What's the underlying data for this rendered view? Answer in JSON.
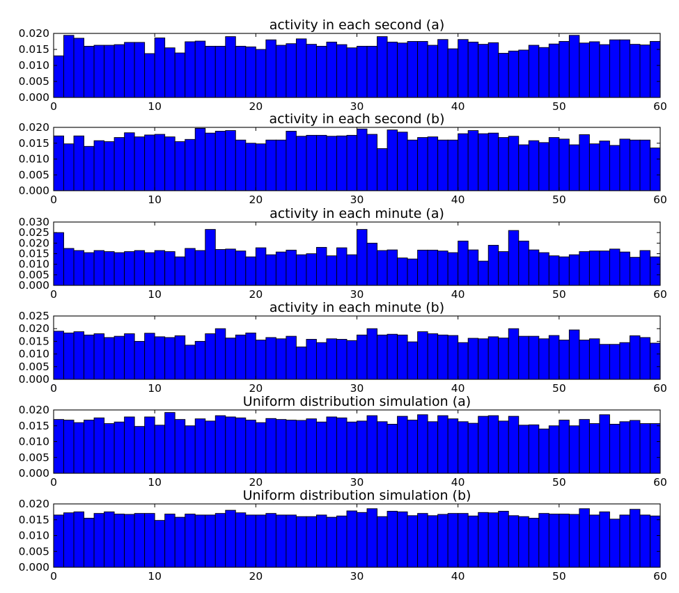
{
  "chart_data": [
    {
      "type": "bar",
      "title": "activity in each second (a)",
      "xlim": [
        0,
        60
      ],
      "ylim": [
        0,
        0.02
      ],
      "xticks": [
        "0",
        "10",
        "20",
        "30",
        "40",
        "50",
        "60"
      ],
      "yticks": [
        "0.000",
        "0.005",
        "0.010",
        "0.015",
        "0.020"
      ],
      "x": [
        0,
        1,
        2,
        3,
        4,
        5,
        6,
        7,
        8,
        9,
        10,
        11,
        12,
        13,
        14,
        15,
        16,
        17,
        18,
        19,
        20,
        21,
        22,
        23,
        24,
        25,
        26,
        27,
        28,
        29,
        30,
        31,
        32,
        33,
        34,
        35,
        36,
        37,
        38,
        39,
        40,
        41,
        42,
        43,
        44,
        45,
        46,
        47,
        48,
        49,
        50,
        51,
        52,
        53,
        54,
        55,
        56,
        57,
        58,
        59
      ],
      "values": [
        0.013,
        0.0194,
        0.0185,
        0.016,
        0.0163,
        0.0163,
        0.0165,
        0.0172,
        0.0172,
        0.0137,
        0.0186,
        0.0155,
        0.0139,
        0.0174,
        0.0176,
        0.016,
        0.016,
        0.019,
        0.016,
        0.0158,
        0.015,
        0.018,
        0.0163,
        0.0168,
        0.0183,
        0.0166,
        0.016,
        0.0173,
        0.0165,
        0.0155,
        0.016,
        0.016,
        0.019,
        0.0173,
        0.017,
        0.0175,
        0.0175,
        0.0163,
        0.0181,
        0.0152,
        0.0181,
        0.0173,
        0.0166,
        0.0171,
        0.0138,
        0.0145,
        0.0148,
        0.0163,
        0.0156,
        0.0167,
        0.0175,
        0.0194,
        0.017,
        0.0174,
        0.0165,
        0.018,
        0.018,
        0.0166,
        0.0164,
        0.0175
      ]
    },
    {
      "type": "bar",
      "title": "activity in each second (b)",
      "xlim": [
        0,
        60
      ],
      "ylim": [
        0,
        0.02
      ],
      "xticks": [
        "0",
        "10",
        "20",
        "30",
        "40",
        "50",
        "60"
      ],
      "yticks": [
        "0.000",
        "0.005",
        "0.010",
        "0.015",
        "0.020"
      ],
      "x": [
        0,
        1,
        2,
        3,
        4,
        5,
        6,
        7,
        8,
        9,
        10,
        11,
        12,
        13,
        14,
        15,
        16,
        17,
        18,
        19,
        20,
        21,
        22,
        23,
        24,
        25,
        26,
        27,
        28,
        29,
        30,
        31,
        32,
        33,
        34,
        35,
        36,
        37,
        38,
        39,
        40,
        41,
        42,
        43,
        44,
        45,
        46,
        47,
        48,
        49,
        50,
        51,
        52,
        53,
        54,
        55,
        56,
        57,
        58,
        59
      ],
      "values": [
        0.0173,
        0.0148,
        0.0173,
        0.014,
        0.0158,
        0.0155,
        0.0168,
        0.0183,
        0.017,
        0.0176,
        0.0178,
        0.017,
        0.0155,
        0.0162,
        0.0197,
        0.0182,
        0.0188,
        0.019,
        0.016,
        0.015,
        0.0148,
        0.016,
        0.016,
        0.0188,
        0.0172,
        0.0175,
        0.0175,
        0.0172,
        0.0173,
        0.0175,
        0.0195,
        0.0178,
        0.0133,
        0.0192,
        0.0185,
        0.016,
        0.0168,
        0.017,
        0.016,
        0.016,
        0.018,
        0.019,
        0.018,
        0.0182,
        0.0168,
        0.0172,
        0.0145,
        0.0158,
        0.0152,
        0.0168,
        0.0163,
        0.0145,
        0.0177,
        0.0148,
        0.0157,
        0.0143,
        0.0163,
        0.016,
        0.016,
        0.0135
      ]
    },
    {
      "type": "bar",
      "title": "activity in each minute (a)",
      "xlim": [
        0,
        60
      ],
      "ylim": [
        0,
        0.03
      ],
      "xticks": [
        "0",
        "10",
        "20",
        "30",
        "40",
        "50",
        "60"
      ],
      "yticks": [
        "0.000",
        "0.005",
        "0.010",
        "0.015",
        "0.020",
        "0.025",
        "0.030"
      ],
      "x": [
        0,
        1,
        2,
        3,
        4,
        5,
        6,
        7,
        8,
        9,
        10,
        11,
        12,
        13,
        14,
        15,
        16,
        17,
        18,
        19,
        20,
        21,
        22,
        23,
        24,
        25,
        26,
        27,
        28,
        29,
        30,
        31,
        32,
        33,
        34,
        35,
        36,
        37,
        38,
        39,
        40,
        41,
        42,
        43,
        44,
        45,
        46,
        47,
        48,
        49,
        50,
        51,
        52,
        53,
        54,
        55,
        56,
        57,
        58,
        59
      ],
      "values": [
        0.025,
        0.0175,
        0.0165,
        0.0155,
        0.0165,
        0.016,
        0.0155,
        0.016,
        0.0165,
        0.0155,
        0.0165,
        0.016,
        0.0135,
        0.0175,
        0.0165,
        0.0265,
        0.017,
        0.0172,
        0.0163,
        0.0135,
        0.0178,
        0.0145,
        0.0158,
        0.0167,
        0.0145,
        0.015,
        0.018,
        0.014,
        0.0178,
        0.0145,
        0.0265,
        0.02,
        0.0165,
        0.0168,
        0.013,
        0.0125,
        0.0167,
        0.0167,
        0.0163,
        0.0155,
        0.021,
        0.0168,
        0.0115,
        0.019,
        0.016,
        0.026,
        0.021,
        0.0168,
        0.0155,
        0.014,
        0.0135,
        0.0145,
        0.016,
        0.0163,
        0.0163,
        0.0172,
        0.0158,
        0.0133,
        0.0165,
        0.0135
      ]
    },
    {
      "type": "bar",
      "title": "activity in each minute (b)",
      "xlim": [
        0,
        60
      ],
      "ylim": [
        0,
        0.025
      ],
      "xticks": [
        "0",
        "10",
        "20",
        "30",
        "40",
        "50",
        "60"
      ],
      "yticks": [
        "0.000",
        "0.005",
        "0.010",
        "0.015",
        "0.020",
        "0.025"
      ],
      "x": [
        0,
        1,
        2,
        3,
        4,
        5,
        6,
        7,
        8,
        9,
        10,
        11,
        12,
        13,
        14,
        15,
        16,
        17,
        18,
        19,
        20,
        21,
        22,
        23,
        24,
        25,
        26,
        27,
        28,
        29,
        30,
        31,
        32,
        33,
        34,
        35,
        36,
        37,
        38,
        39,
        40,
        41,
        42,
        43,
        44,
        45,
        46,
        47,
        48,
        49,
        50,
        51,
        52,
        53,
        54,
        55,
        56,
        57,
        58,
        59
      ],
      "values": [
        0.019,
        0.0183,
        0.0188,
        0.0175,
        0.018,
        0.0165,
        0.017,
        0.018,
        0.015,
        0.0182,
        0.0168,
        0.0165,
        0.0172,
        0.0135,
        0.015,
        0.018,
        0.02,
        0.0163,
        0.0175,
        0.0183,
        0.0155,
        0.0165,
        0.016,
        0.017,
        0.0128,
        0.0158,
        0.0145,
        0.016,
        0.0158,
        0.0153,
        0.0175,
        0.02,
        0.0175,
        0.0178,
        0.0175,
        0.0148,
        0.0188,
        0.018,
        0.0175,
        0.0173,
        0.0145,
        0.0162,
        0.016,
        0.0168,
        0.0163,
        0.02,
        0.017,
        0.017,
        0.016,
        0.0173,
        0.0155,
        0.0195,
        0.0155,
        0.016,
        0.0138,
        0.0138,
        0.0145,
        0.0172,
        0.0165,
        0.0143
      ]
    },
    {
      "type": "bar",
      "title": "Uniform distribution simulation (a)",
      "xlim": [
        0,
        60
      ],
      "ylim": [
        0,
        0.02
      ],
      "xticks": [
        "0",
        "10",
        "20",
        "30",
        "40",
        "50",
        "60"
      ],
      "yticks": [
        "0.000",
        "0.005",
        "0.010",
        "0.015",
        "0.020"
      ],
      "x": [
        0,
        1,
        2,
        3,
        4,
        5,
        6,
        7,
        8,
        9,
        10,
        11,
        12,
        13,
        14,
        15,
        16,
        17,
        18,
        19,
        20,
        21,
        22,
        23,
        24,
        25,
        26,
        27,
        28,
        29,
        30,
        31,
        32,
        33,
        34,
        35,
        36,
        37,
        38,
        39,
        40,
        41,
        42,
        43,
        44,
        45,
        46,
        47,
        48,
        49,
        50,
        51,
        52,
        53,
        54,
        55,
        56,
        57,
        58,
        59
      ],
      "values": [
        0.017,
        0.0168,
        0.016,
        0.0168,
        0.0175,
        0.0157,
        0.0162,
        0.0178,
        0.0148,
        0.0178,
        0.0152,
        0.0192,
        0.017,
        0.015,
        0.0172,
        0.0165,
        0.0182,
        0.0178,
        0.0175,
        0.0168,
        0.016,
        0.0173,
        0.017,
        0.0168,
        0.0167,
        0.0172,
        0.0162,
        0.0178,
        0.0175,
        0.0162,
        0.0165,
        0.0182,
        0.0163,
        0.0155,
        0.018,
        0.0168,
        0.0185,
        0.0163,
        0.0182,
        0.0172,
        0.0163,
        0.0158,
        0.018,
        0.0182,
        0.0165,
        0.018,
        0.0152,
        0.0153,
        0.014,
        0.015,
        0.0168,
        0.015,
        0.017,
        0.0157,
        0.0185,
        0.0155,
        0.0163,
        0.0167,
        0.0157,
        0.0157
      ]
    },
    {
      "type": "bar",
      "title": "Uniform distribution simulation (b)",
      "xlim": [
        0,
        60
      ],
      "ylim": [
        0,
        0.02
      ],
      "xticks": [
        "0",
        "10",
        "20",
        "30",
        "40",
        "50",
        "60"
      ],
      "yticks": [
        "0.000",
        "0.005",
        "0.010",
        "0.015",
        "0.020"
      ],
      "x": [
        0,
        1,
        2,
        3,
        4,
        5,
        6,
        7,
        8,
        9,
        10,
        11,
        12,
        13,
        14,
        15,
        16,
        17,
        18,
        19,
        20,
        21,
        22,
        23,
        24,
        25,
        26,
        27,
        28,
        29,
        30,
        31,
        32,
        33,
        34,
        35,
        36,
        37,
        38,
        39,
        40,
        41,
        42,
        43,
        44,
        45,
        46,
        47,
        48,
        49,
        50,
        51,
        52,
        53,
        54,
        55,
        56,
        57,
        58,
        59
      ],
      "values": [
        0.0165,
        0.0172,
        0.0175,
        0.0155,
        0.017,
        0.0175,
        0.0168,
        0.0167,
        0.017,
        0.017,
        0.0148,
        0.0168,
        0.0158,
        0.0168,
        0.0165,
        0.0165,
        0.017,
        0.018,
        0.0172,
        0.0165,
        0.0165,
        0.017,
        0.0165,
        0.0165,
        0.016,
        0.016,
        0.0165,
        0.0158,
        0.0162,
        0.0178,
        0.0173,
        0.0185,
        0.016,
        0.0177,
        0.0175,
        0.0163,
        0.017,
        0.0163,
        0.0167,
        0.017,
        0.017,
        0.0162,
        0.0173,
        0.0172,
        0.0177,
        0.0163,
        0.016,
        0.0155,
        0.017,
        0.0168,
        0.0168,
        0.0167,
        0.0185,
        0.0165,
        0.0175,
        0.0152,
        0.0165,
        0.0183,
        0.0165,
        0.0162
      ]
    }
  ]
}
